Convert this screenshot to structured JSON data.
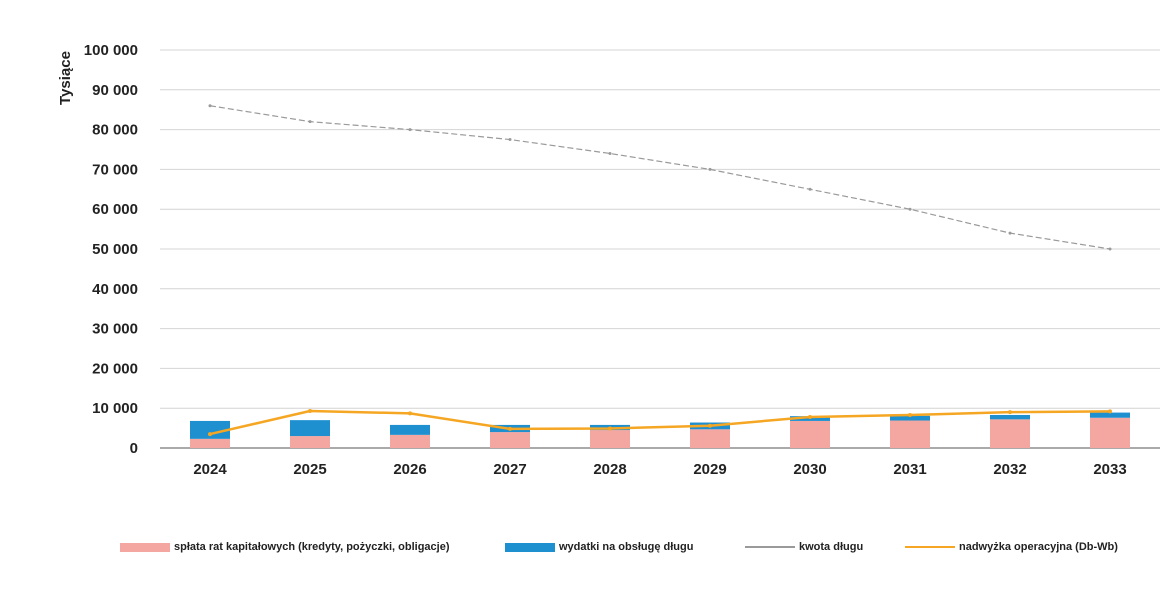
{
  "chart_data": {
    "type": "bar",
    "title": "",
    "xlabel": "",
    "ylabel": "Tysiące",
    "categories": [
      "2024",
      "2025",
      "2026",
      "2027",
      "2028",
      "2029",
      "2030",
      "2031",
      "2032",
      "2033"
    ],
    "ylim": [
      0,
      100000
    ],
    "yticks": [
      0,
      10000,
      20000,
      30000,
      40000,
      50000,
      60000,
      70000,
      80000,
      90000,
      100000
    ],
    "ytick_labels": [
      "0",
      "10 000",
      "20 000",
      "30 000",
      "40 000",
      "50 000",
      "60 000",
      "70 000",
      "80 000",
      "90 000",
      "100 000"
    ],
    "stacked": true,
    "grid": true,
    "legend_position": "bottom",
    "series": [
      {
        "name": "spłata rat kapitałowych (kredyty, pożyczki, obligacje)",
        "kind": "bar",
        "color": "#f4a7a0",
        "values": [
          2300,
          3000,
          3300,
          4000,
          4500,
          4700,
          6800,
          6900,
          7200,
          7600
        ]
      },
      {
        "name": "wydatki na obsługę długu",
        "kind": "bar",
        "color": "#1e90d0",
        "values": [
          4500,
          4000,
          2500,
          1800,
          1300,
          1700,
          1200,
          1200,
          1100,
          1300
        ]
      },
      {
        "name": "kwota długu",
        "kind": "line",
        "color": "#9a9a9a",
        "values": [
          86000,
          82000,
          80000,
          77500,
          74000,
          70000,
          65000,
          60000,
          54000,
          50000
        ]
      },
      {
        "name": "nadwyżka operacyjna (Db-Wb)",
        "kind": "line",
        "color": "#f5a623",
        "values": [
          3500,
          9300,
          8700,
          4800,
          4900,
          5600,
          7800,
          8300,
          9000,
          9200
        ]
      }
    ]
  }
}
